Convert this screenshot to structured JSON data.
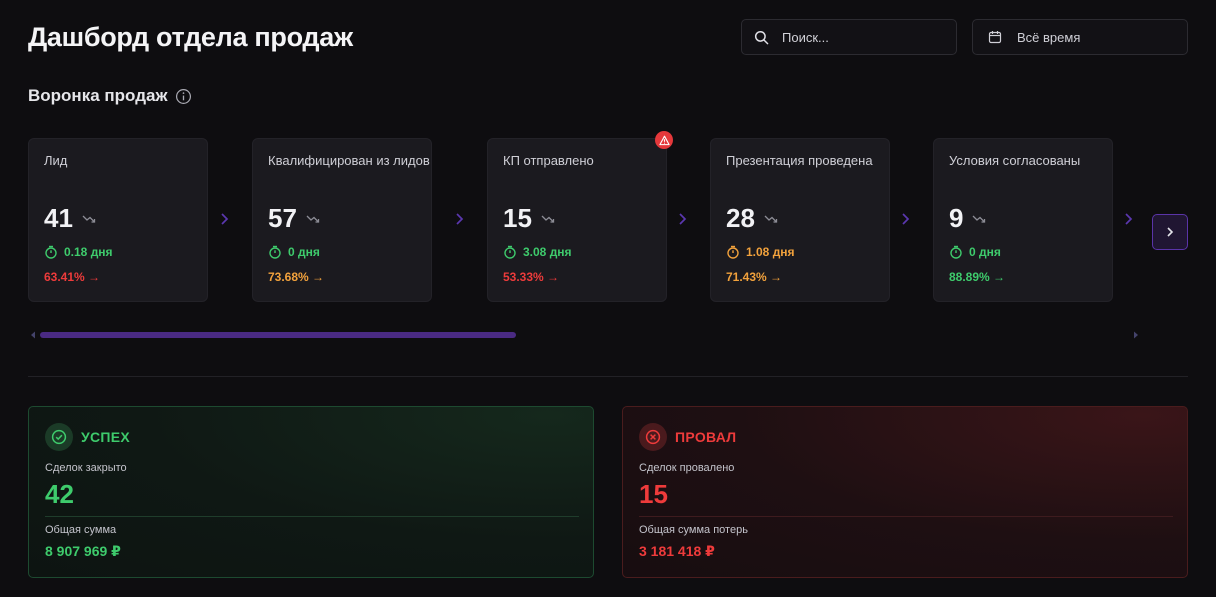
{
  "page": {
    "title": "Дашборд отдела продаж"
  },
  "search": {
    "placeholder": "Поиск..."
  },
  "period": {
    "label": "Всё время"
  },
  "funnel": {
    "title": "Воронка продаж",
    "stages": [
      {
        "name": "Лид",
        "count": "41",
        "time": "0.18 дня",
        "time_status": "green",
        "conversion": "63.41% →",
        "conversion_status": "red"
      },
      {
        "name": "Квалифицирован из лидов",
        "count": "57",
        "time": "0 дня",
        "time_status": "green",
        "conversion": "73.68% →",
        "conversion_status": "orange"
      },
      {
        "name": "КП отправлено",
        "count": "15",
        "time": "3.08 дня",
        "time_status": "green",
        "conversion": "53.33% →",
        "conversion_status": "red",
        "alert": true
      },
      {
        "name": "Презентация проведена",
        "count": "28",
        "time": "1.08 дня",
        "time_status": "orange",
        "conversion": "71.43% →",
        "conversion_status": "orange"
      },
      {
        "name": "Условия согласованы",
        "count": "9",
        "time": "0 дня",
        "time_status": "green",
        "conversion": "88.89% →",
        "conversion_status": "green"
      }
    ]
  },
  "success": {
    "title": "УСПЕХ",
    "closed_label": "Сделок закрыто",
    "closed_value": "42",
    "sum_label": "Общая сумма",
    "sum_value": "8 907 969 ₽"
  },
  "failure": {
    "title": "ПРОВАЛ",
    "lost_label": "Сделок провалено",
    "lost_value": "15",
    "sum_label": "Общая сумма потерь",
    "sum_value": "3 181 418 ₽"
  },
  "colors": {
    "green": "#3ecb6c",
    "orange": "#f2a23c",
    "red": "#ee3b3b",
    "accent": "#5a34a8"
  }
}
